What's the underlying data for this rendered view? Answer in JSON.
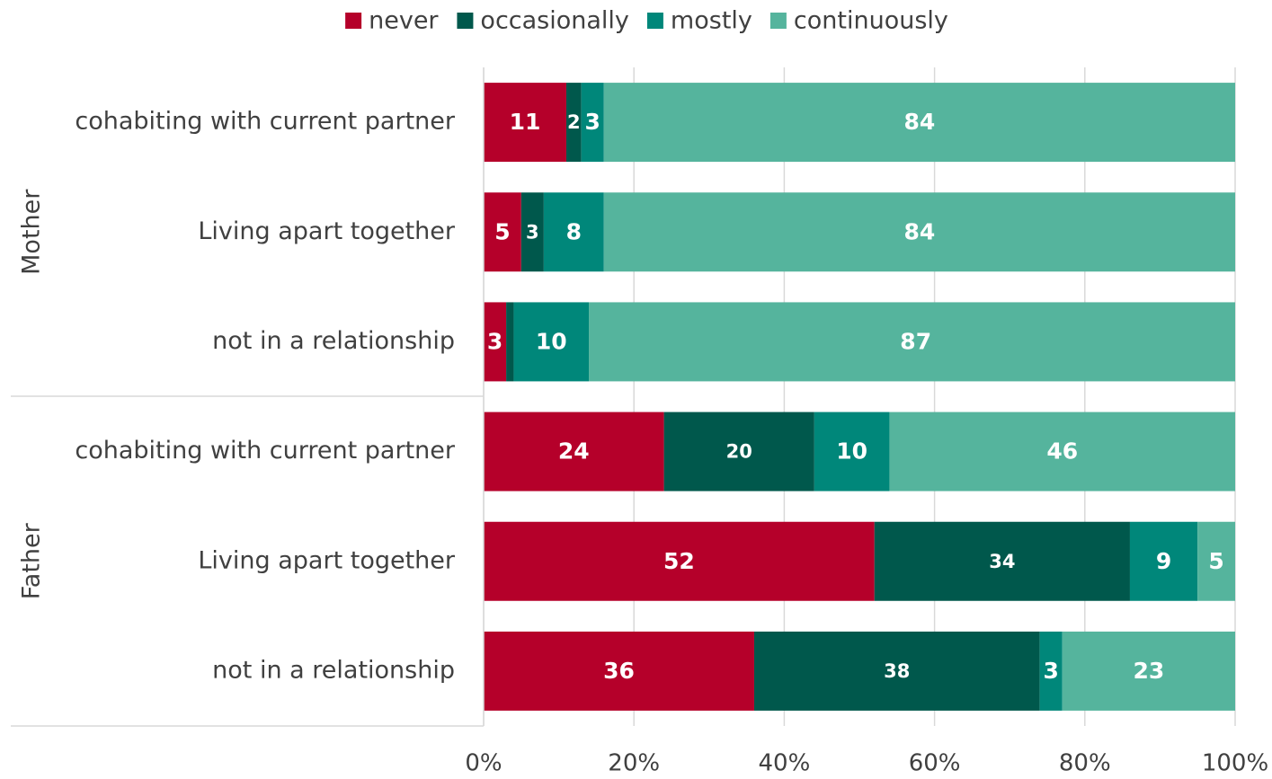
{
  "chart_data": {
    "type": "stacked-bar-horizontal",
    "groups": [
      "Mother",
      "Father"
    ],
    "categories": [
      "cohabiting with current partner",
      "Living apart together",
      "not in a relationship",
      "cohabiting with current partner",
      "Living apart together",
      "not in a relationship"
    ],
    "series": [
      {
        "name": "never",
        "color": "#b5002a",
        "values": [
          11,
          5,
          3,
          24,
          52,
          36
        ]
      },
      {
        "name": "occasionally",
        "color": "#00584c",
        "values": [
          2,
          3,
          1,
          20,
          34,
          38
        ]
      },
      {
        "name": "mostly",
        "color": "#00877a",
        "values": [
          3,
          8,
          10,
          10,
          9,
          3
        ]
      },
      {
        "name": "continuously",
        "color": "#55b49d",
        "values": [
          84,
          84,
          87,
          46,
          5,
          23
        ]
      }
    ],
    "xlim": [
      0,
      100
    ],
    "xticks": [
      {
        "value": 0,
        "label": "0%"
      },
      {
        "value": 20,
        "label": "20%"
      },
      {
        "value": 40,
        "label": "40%"
      },
      {
        "value": 60,
        "label": "60%"
      },
      {
        "value": 80,
        "label": "80%"
      },
      {
        "value": 100,
        "label": "100%"
      }
    ],
    "grid": true,
    "legend": "top"
  }
}
